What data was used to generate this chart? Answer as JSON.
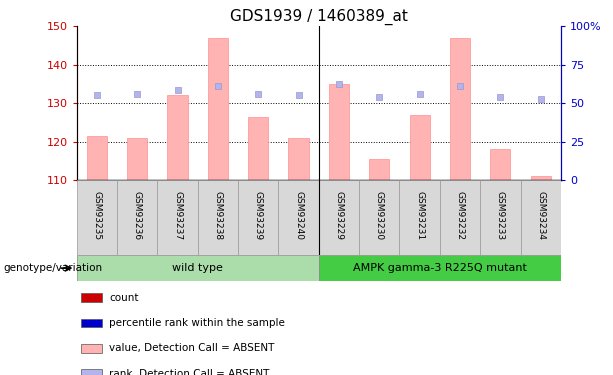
{
  "title": "GDS1939 / 1460389_at",
  "samples": [
    "GSM93235",
    "GSM93236",
    "GSM93237",
    "GSM93238",
    "GSM93239",
    "GSM93240",
    "GSM93229",
    "GSM93230",
    "GSM93231",
    "GSM93232",
    "GSM93233",
    "GSM93234"
  ],
  "bar_values": [
    121.5,
    121.0,
    132.0,
    147.0,
    126.5,
    121.0,
    135.0,
    115.5,
    127.0,
    147.0,
    118.0,
    111.0
  ],
  "rank_values": [
    132.0,
    132.5,
    133.5,
    134.5,
    132.5,
    132.0,
    135.0,
    131.5,
    132.5,
    134.5,
    131.5,
    131.0
  ],
  "ylim_left": [
    110,
    150
  ],
  "ylim_right": [
    0,
    100
  ],
  "yticks_left": [
    110,
    120,
    130,
    140,
    150
  ],
  "yticks_right": [
    0,
    25,
    50,
    75,
    100
  ],
  "ytick_labels_right": [
    "0",
    "25",
    "50",
    "75",
    "100%"
  ],
  "bar_color": "#ffb3b3",
  "rank_color": "#b3b3ee",
  "bar_edge_color": "#ff9090",
  "rank_edge_color": "#9999cc",
  "wild_type_label": "wild type",
  "mutant_label": "AMPK gamma-3 R225Q mutant",
  "wild_type_color": "#aaddaa",
  "mutant_color": "#44cc44",
  "genotype_label": "genotype/variation",
  "legend_items": [
    {
      "label": "count",
      "color": "#cc0000"
    },
    {
      "label": "percentile rank within the sample",
      "color": "#0000cc"
    },
    {
      "label": "value, Detection Call = ABSENT",
      "color": "#ffb3b3"
    },
    {
      "label": "rank, Detection Call = ABSENT",
      "color": "#b3b3ee"
    }
  ],
  "tick_color_left": "#cc0000",
  "tick_color_right": "#0000cc",
  "bar_width": 0.5,
  "sample_box_color": "#d8d8d8",
  "sample_box_edge": "#999999"
}
